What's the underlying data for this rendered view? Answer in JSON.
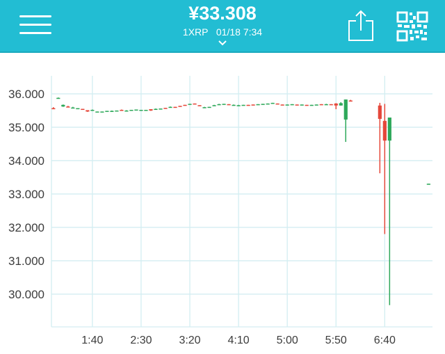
{
  "header": {
    "price": "¥33.308",
    "subtitle": "1XRP   01/18 7:34",
    "menu_icon": "hamburger-menu-icon",
    "share_icon": "share-icon",
    "qr_icon": "qr-code-icon",
    "expand_icon": "chevron-down-icon",
    "background": "#22bdd3"
  },
  "chart_data": {
    "type": "candlestick",
    "x_unit": "time (5-minute candles)",
    "xlim": [
      "0:58",
      "7:29"
    ],
    "ylim": [
      29.02,
      36.54
    ],
    "grid": true,
    "x_ticks": [
      "1:40",
      "2:30",
      "3:20",
      "4:10",
      "5:00",
      "5:50",
      "6:40"
    ],
    "y_ticks": [
      "36.000",
      "35.000",
      "34.000",
      "33.000",
      "32.000",
      "31.000",
      "30.000"
    ],
    "y_tick_values": [
      36,
      35,
      34,
      33,
      32,
      31,
      30
    ],
    "up_color": "#2ea85a",
    "down_color": "#e5473a",
    "grid_color": "#d3eef2",
    "columns": [
      "time",
      "open",
      "high",
      "low",
      "close"
    ],
    "candles": [
      [
        "1:00",
        35.57,
        35.6,
        35.55,
        35.55
      ],
      [
        "1:05",
        35.87,
        35.89,
        35.86,
        35.88
      ],
      [
        "1:10",
        35.62,
        35.68,
        35.61,
        35.67
      ],
      [
        "1:15",
        35.62,
        35.64,
        35.6,
        35.6
      ],
      [
        "1:20",
        35.58,
        35.61,
        35.58,
        35.59
      ],
      [
        "1:25",
        35.56,
        35.57,
        35.56,
        35.57
      ],
      [
        "1:30",
        35.55,
        35.55,
        35.54,
        35.54
      ],
      [
        "1:35",
        35.51,
        35.51,
        35.46,
        35.47
      ],
      [
        "1:40",
        35.49,
        35.53,
        35.49,
        35.52
      ],
      [
        "1:45",
        35.46,
        35.47,
        35.46,
        35.47
      ],
      [
        "1:50",
        35.47,
        35.47,
        35.46,
        35.47
      ],
      [
        "1:55",
        35.48,
        35.49,
        35.48,
        35.49
      ],
      [
        "2:00",
        35.48,
        35.5,
        35.46,
        35.49
      ],
      [
        "2:05",
        35.49,
        35.5,
        35.49,
        35.5
      ],
      [
        "2:10",
        35.52,
        35.53,
        35.51,
        35.51
      ],
      [
        "2:15",
        35.49,
        35.51,
        35.47,
        35.5
      ],
      [
        "2:20",
        35.51,
        35.52,
        35.51,
        35.52
      ],
      [
        "2:25",
        35.52,
        35.53,
        35.52,
        35.53
      ],
      [
        "2:30",
        35.51,
        35.52,
        35.51,
        35.52
      ],
      [
        "2:35",
        35.51,
        35.52,
        35.51,
        35.52
      ],
      [
        "2:40",
        35.54,
        35.54,
        35.49,
        35.5
      ],
      [
        "2:45",
        35.54,
        35.56,
        35.54,
        35.55
      ],
      [
        "2:50",
        35.55,
        35.56,
        35.55,
        35.56
      ],
      [
        "2:55",
        35.58,
        35.58,
        35.56,
        35.57
      ],
      [
        "3:00",
        35.59,
        35.62,
        35.59,
        35.61
      ],
      [
        "3:05",
        35.61,
        35.61,
        35.6,
        35.6
      ],
      [
        "3:10",
        35.64,
        35.64,
        35.63,
        35.63
      ],
      [
        "3:15",
        35.67,
        35.67,
        35.66,
        35.66
      ],
      [
        "3:20",
        35.69,
        35.7,
        35.69,
        35.7
      ],
      [
        "3:25",
        35.71,
        35.71,
        35.7,
        35.7
      ],
      [
        "3:30",
        35.66,
        35.66,
        35.65,
        35.65
      ],
      [
        "3:35",
        35.6,
        35.61,
        35.59,
        35.6
      ],
      [
        "3:40",
        35.61,
        35.61,
        35.6,
        35.61
      ],
      [
        "3:45",
        35.64,
        35.67,
        35.64,
        35.66
      ],
      [
        "3:50",
        35.67,
        35.7,
        35.67,
        35.69
      ],
      [
        "3:55",
        35.69,
        35.7,
        35.69,
        35.7
      ],
      [
        "4:00",
        35.69,
        35.69,
        35.68,
        35.68
      ],
      [
        "4:05",
        35.66,
        35.68,
        35.66,
        35.67
      ],
      [
        "4:10",
        35.64,
        35.67,
        35.64,
        35.66
      ],
      [
        "4:15",
        35.66,
        35.67,
        35.66,
        35.67
      ],
      [
        "4:20",
        35.67,
        35.67,
        35.66,
        35.66
      ],
      [
        "4:25",
        35.68,
        35.68,
        35.67,
        35.67
      ],
      [
        "4:30",
        35.68,
        35.69,
        35.68,
        35.69
      ],
      [
        "4:35",
        35.7,
        35.7,
        35.69,
        35.7
      ],
      [
        "4:40",
        35.71,
        35.71,
        35.7,
        35.71
      ],
      [
        "4:45",
        35.72,
        35.73,
        35.72,
        35.73
      ],
      [
        "4:50",
        35.71,
        35.71,
        35.7,
        35.7
      ],
      [
        "4:55",
        35.68,
        35.68,
        35.67,
        35.67
      ],
      [
        "5:00",
        35.67,
        35.68,
        35.67,
        35.68
      ],
      [
        "5:05",
        35.68,
        35.69,
        35.68,
        35.69
      ],
      [
        "5:10",
        35.68,
        35.68,
        35.67,
        35.67
      ],
      [
        "5:15",
        35.67,
        35.68,
        35.66,
        35.68
      ],
      [
        "5:20",
        35.67,
        35.67,
        35.66,
        35.66
      ],
      [
        "5:25",
        35.66,
        35.67,
        35.66,
        35.67
      ],
      [
        "5:30",
        35.67,
        35.68,
        35.67,
        35.68
      ],
      [
        "5:35",
        35.69,
        35.69,
        35.68,
        35.68
      ],
      [
        "5:40",
        35.68,
        35.7,
        35.68,
        35.69
      ],
      [
        "5:45",
        35.69,
        35.69,
        35.67,
        35.67
      ],
      [
        "5:50",
        35.71,
        35.72,
        35.54,
        35.65
      ],
      [
        "5:55",
        35.65,
        35.75,
        35.65,
        35.72
      ],
      [
        "6:00",
        35.23,
        35.83,
        34.56,
        35.83
      ],
      [
        "6:05",
        35.8,
        35.82,
        35.79,
        35.79
      ],
      [
        "6:35",
        35.65,
        35.73,
        33.62,
        35.25
      ],
      [
        "6:40",
        35.19,
        35.7,
        31.8,
        34.6
      ],
      [
        "6:45",
        34.6,
        35.29,
        29.67,
        35.29
      ],
      [
        "7:25",
        33.3,
        33.31,
        33.3,
        33.308
      ]
    ]
  }
}
